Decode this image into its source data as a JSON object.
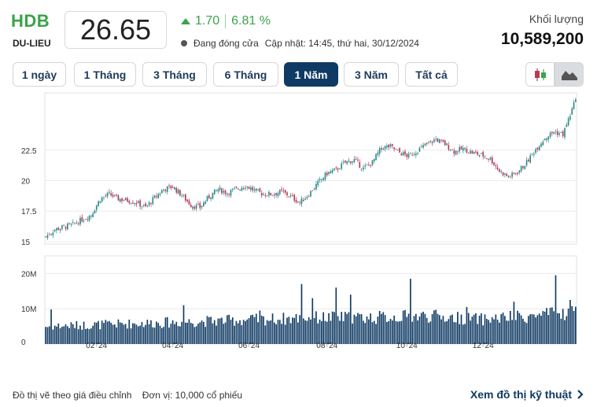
{
  "stock": {
    "ticker": "HDB",
    "exchange": "DU-LIEU",
    "price": "26.65",
    "change": "1.70",
    "change_pct": "6.81 %",
    "status": "Đang đóng cửa",
    "updated": "Cập nhật: 14:45, thứ hai, 30/12/2024",
    "volume_label": "Khối lượng",
    "volume": "10,589,200"
  },
  "colors": {
    "up": "#3aa34a",
    "accent": "#0f3a63",
    "candle_up": "#2d8a8a",
    "candle_down": "#b53957"
  },
  "tabs": [
    {
      "label": "1 ngày",
      "active": false
    },
    {
      "label": "1 Tháng",
      "active": false
    },
    {
      "label": "3 Tháng",
      "active": false
    },
    {
      "label": "6 Tháng",
      "active": false
    },
    {
      "label": "1 Năm",
      "active": true
    },
    {
      "label": "3 Năm",
      "active": false
    },
    {
      "label": "Tất cả",
      "active": false
    }
  ],
  "chart_type_buttons": {
    "candle_icon": "candlestick-icon",
    "area_icon": "area-chart-icon",
    "selected": "area"
  },
  "footer": {
    "note": "Đồ thị vẽ theo giá điều chỉnh    Đơn vị: 10,000 cổ phiếu",
    "link": "Xem đồ thị kỹ thuật"
  },
  "chart_data": {
    "type": "candlestick",
    "price_axis": {
      "ticks": [
        15,
        17.5,
        20,
        22.5
      ],
      "tick_labels": [
        "15",
        "17.5",
        "20",
        "22.5"
      ],
      "range": [
        14.8,
        27.2
      ]
    },
    "volume_axis": {
      "ticks": [
        0,
        10000000,
        20000000
      ],
      "tick_labels": [
        "0",
        "10M",
        "20M"
      ],
      "range": [
        0,
        25000000
      ]
    },
    "x_tick_labels": [
      "02 '24",
      "04 '24",
      "06 '24",
      "08 '24",
      "10 '24",
      "12 '24"
    ],
    "x_tick_index": [
      28,
      70,
      112,
      155,
      199,
      241
    ],
    "price_anchors": [
      [
        0,
        15.4
      ],
      [
        5,
        16.0
      ],
      [
        15,
        16.4
      ],
      [
        20,
        16.8
      ],
      [
        25,
        17.2
      ],
      [
        30,
        18.5
      ],
      [
        35,
        18.9
      ],
      [
        40,
        18.5
      ],
      [
        45,
        18.4
      ],
      [
        50,
        18.2
      ],
      [
        55,
        17.8
      ],
      [
        60,
        18.6
      ],
      [
        65,
        19.3
      ],
      [
        70,
        19.5
      ],
      [
        75,
        18.8
      ],
      [
        80,
        18.0
      ],
      [
        85,
        17.8
      ],
      [
        90,
        18.7
      ],
      [
        95,
        19.3
      ],
      [
        100,
        19.0
      ],
      [
        105,
        19.3
      ],
      [
        110,
        19.6
      ],
      [
        115,
        19.2
      ],
      [
        120,
        18.9
      ],
      [
        125,
        18.9
      ],
      [
        130,
        19.1
      ],
      [
        135,
        18.7
      ],
      [
        140,
        18.2
      ],
      [
        145,
        18.9
      ],
      [
        150,
        19.8
      ],
      [
        155,
        20.6
      ],
      [
        160,
        20.9
      ],
      [
        165,
        21.5
      ],
      [
        170,
        21.7
      ],
      [
        175,
        21.0
      ],
      [
        180,
        21.5
      ],
      [
        185,
        22.7
      ],
      [
        190,
        22.8
      ],
      [
        195,
        22.3
      ],
      [
        200,
        22.0
      ],
      [
        205,
        22.5
      ],
      [
        210,
        23.0
      ],
      [
        215,
        23.4
      ],
      [
        220,
        23.0
      ],
      [
        225,
        22.4
      ],
      [
        230,
        22.6
      ],
      [
        235,
        22.3
      ],
      [
        240,
        22.1
      ],
      [
        245,
        21.8
      ],
      [
        250,
        20.8
      ],
      [
        255,
        20.3
      ],
      [
        260,
        20.7
      ],
      [
        265,
        21.5
      ],
      [
        270,
        22.6
      ],
      [
        275,
        23.5
      ],
      [
        280,
        24.0
      ],
      [
        285,
        23.8
      ],
      [
        288,
        25.0
      ],
      [
        292,
        26.65
      ]
    ],
    "volume_anchors": [
      [
        0,
        5000000
      ],
      [
        30,
        5500000
      ],
      [
        60,
        6000000
      ],
      [
        90,
        6500000
      ],
      [
        120,
        7000000
      ],
      [
        150,
        7500000
      ],
      [
        180,
        7500000
      ],
      [
        210,
        8000000
      ],
      [
        240,
        7000000
      ],
      [
        270,
        8000000
      ],
      [
        292,
        9000000
      ]
    ],
    "volume_spikes": [
      [
        3,
        9800000
      ],
      [
        76,
        11000000
      ],
      [
        118,
        9500000
      ],
      [
        141,
        17000000
      ],
      [
        147,
        13000000
      ],
      [
        160,
        16000000
      ],
      [
        168,
        14000000
      ],
      [
        201,
        18500000
      ],
      [
        232,
        10500000
      ],
      [
        258,
        12000000
      ],
      [
        281,
        19500000
      ],
      [
        289,
        12500000
      ]
    ],
    "last_price": 26.65,
    "last_volume": 10589200
  }
}
